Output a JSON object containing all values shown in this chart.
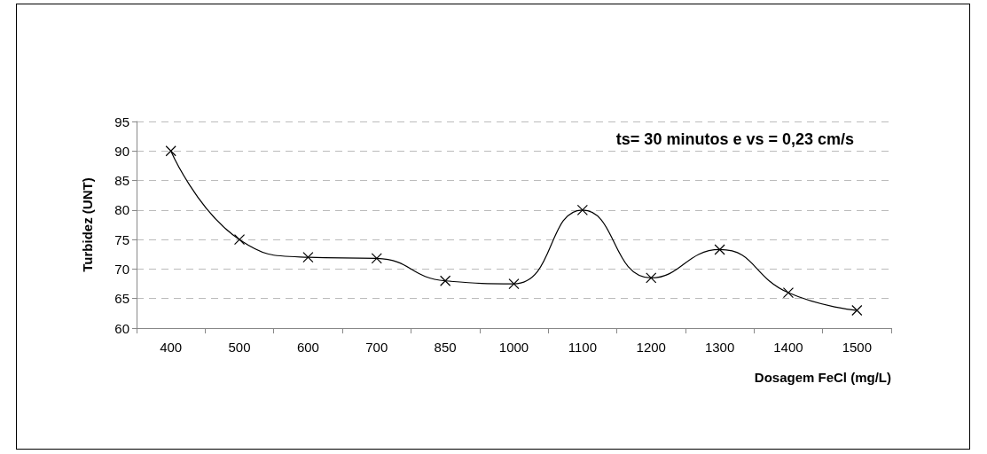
{
  "chart_data": {
    "type": "line",
    "xlabel": "Dosagem FeCl (mg/L)",
    "ylabel": "Turbidez (UNT)",
    "annotations": [
      "ts= 30 minutos e vs = 0,23 cm/s"
    ],
    "categories": [
      "400",
      "500",
      "600",
      "700",
      "850",
      "1000",
      "1100",
      "1200",
      "1300",
      "1400",
      "1500"
    ],
    "series": [
      {
        "color": "#000000",
        "values": [
          90,
          75,
          72,
          71.8,
          68,
          67.5,
          80,
          68.5,
          73.3,
          66,
          63
        ]
      }
    ],
    "ylim": [
      60,
      95
    ],
    "yticks": [
      60,
      65,
      70,
      75,
      80,
      85,
      90,
      95
    ],
    "grid": "y",
    "marker": "cross",
    "line_style": "solid"
  }
}
